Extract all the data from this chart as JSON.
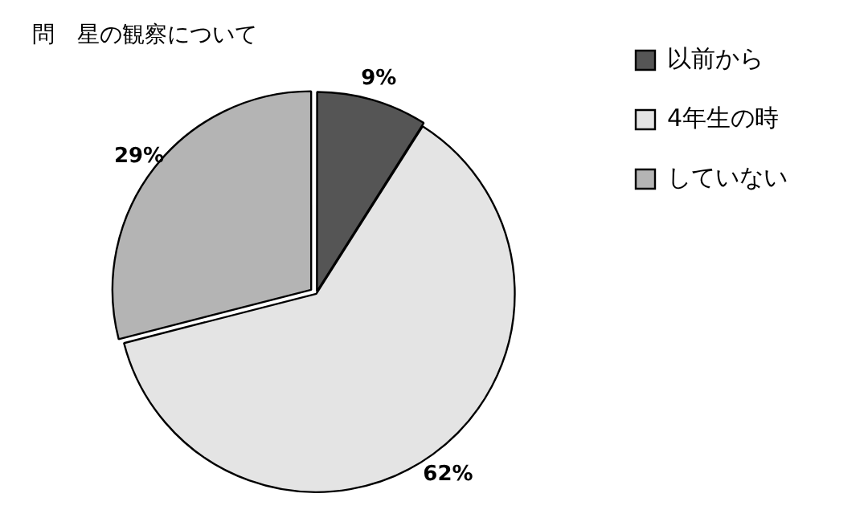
{
  "chart_data": {
    "type": "pie",
    "title": "問　星の観察について",
    "categories": [
      "以前から",
      "4年生の時",
      "していない"
    ],
    "values": [
      9,
      62,
      29
    ],
    "colors": [
      "#555555",
      "#e4e4e4",
      "#b4b4b4"
    ],
    "value_labels": [
      "9%",
      "62%",
      "29%"
    ],
    "legend": "top right"
  }
}
